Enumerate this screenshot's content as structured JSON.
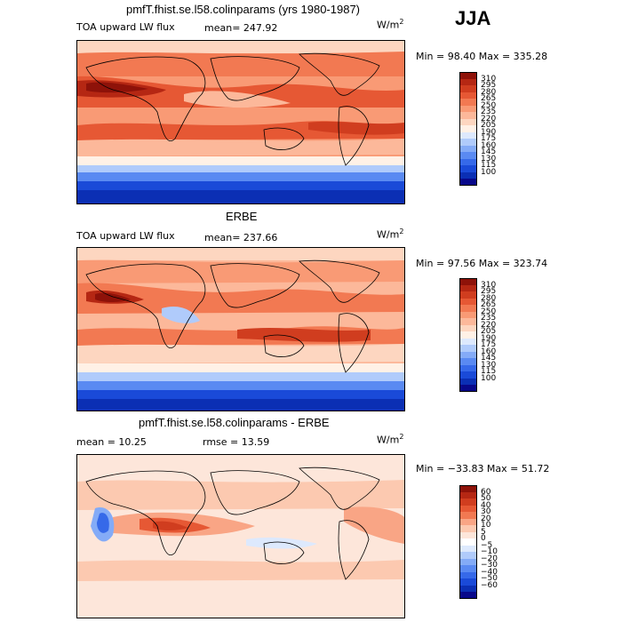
{
  "season": "JJA",
  "palette_flux": [
    "#08088a",
    "#0b2fb4",
    "#1a4ad8",
    "#3669e9",
    "#5a8af2",
    "#84abf7",
    "#b0cbfb",
    "#dde9fd",
    "#fff1e6",
    "#fdd6c0",
    "#fcb89a",
    "#f99a75",
    "#f27952",
    "#e65834",
    "#d03d1f",
    "#b52713",
    "#8e1209"
  ],
  "palette_diff": [
    "#08088a",
    "#0b2fb4",
    "#1a4ad8",
    "#3669e9",
    "#5a8af2",
    "#84abf7",
    "#b0cbfb",
    "#dde9fd",
    "#ffffff",
    "#fde6da",
    "#fcc9b0",
    "#f9a585",
    "#f27952",
    "#e65834",
    "#d03d1f",
    "#b52713",
    "#8e1209"
  ],
  "panels": [
    {
      "title": "pmfT.fhist.se.l58.colinparams (yrs 1980-1987)",
      "left_label": "TOA upward LW flux",
      "mean_text": "mean= 247.92",
      "units": "W/m",
      "units_sup": "2",
      "minmax": "Min =  98.40 Max =  335.28",
      "levels": [
        "310",
        "295",
        "280",
        "265",
        "250",
        "235",
        "220",
        "205",
        "190",
        "175",
        "160",
        "145",
        "130",
        "115",
        "100"
      ],
      "palette": "flux"
    },
    {
      "title": "ERBE",
      "left_label": "TOA upward LW flux",
      "mean_text": "mean= 237.66",
      "units": "W/m",
      "units_sup": "2",
      "minmax": "Min =  97.56 Max =  323.74",
      "levels": [
        "310",
        "295",
        "280",
        "265",
        "250",
        "235",
        "220",
        "205",
        "190",
        "175",
        "160",
        "145",
        "130",
        "115",
        "100"
      ],
      "palette": "flux"
    },
    {
      "title": "pmfT.fhist.se.l58.colinparams - ERBE",
      "left_label": "mean =  10.25",
      "mean_text": "rmse =  13.59",
      "units": "W/m",
      "units_sup": "2",
      "minmax": "Min = −33.83 Max =  51.72",
      "levels": [
        "60",
        "50",
        "40",
        "30",
        "20",
        "10",
        "5",
        "0",
        "−5",
        "−10",
        "−20",
        "−30",
        "−40",
        "−50",
        "−60"
      ],
      "palette": "diff"
    }
  ]
}
